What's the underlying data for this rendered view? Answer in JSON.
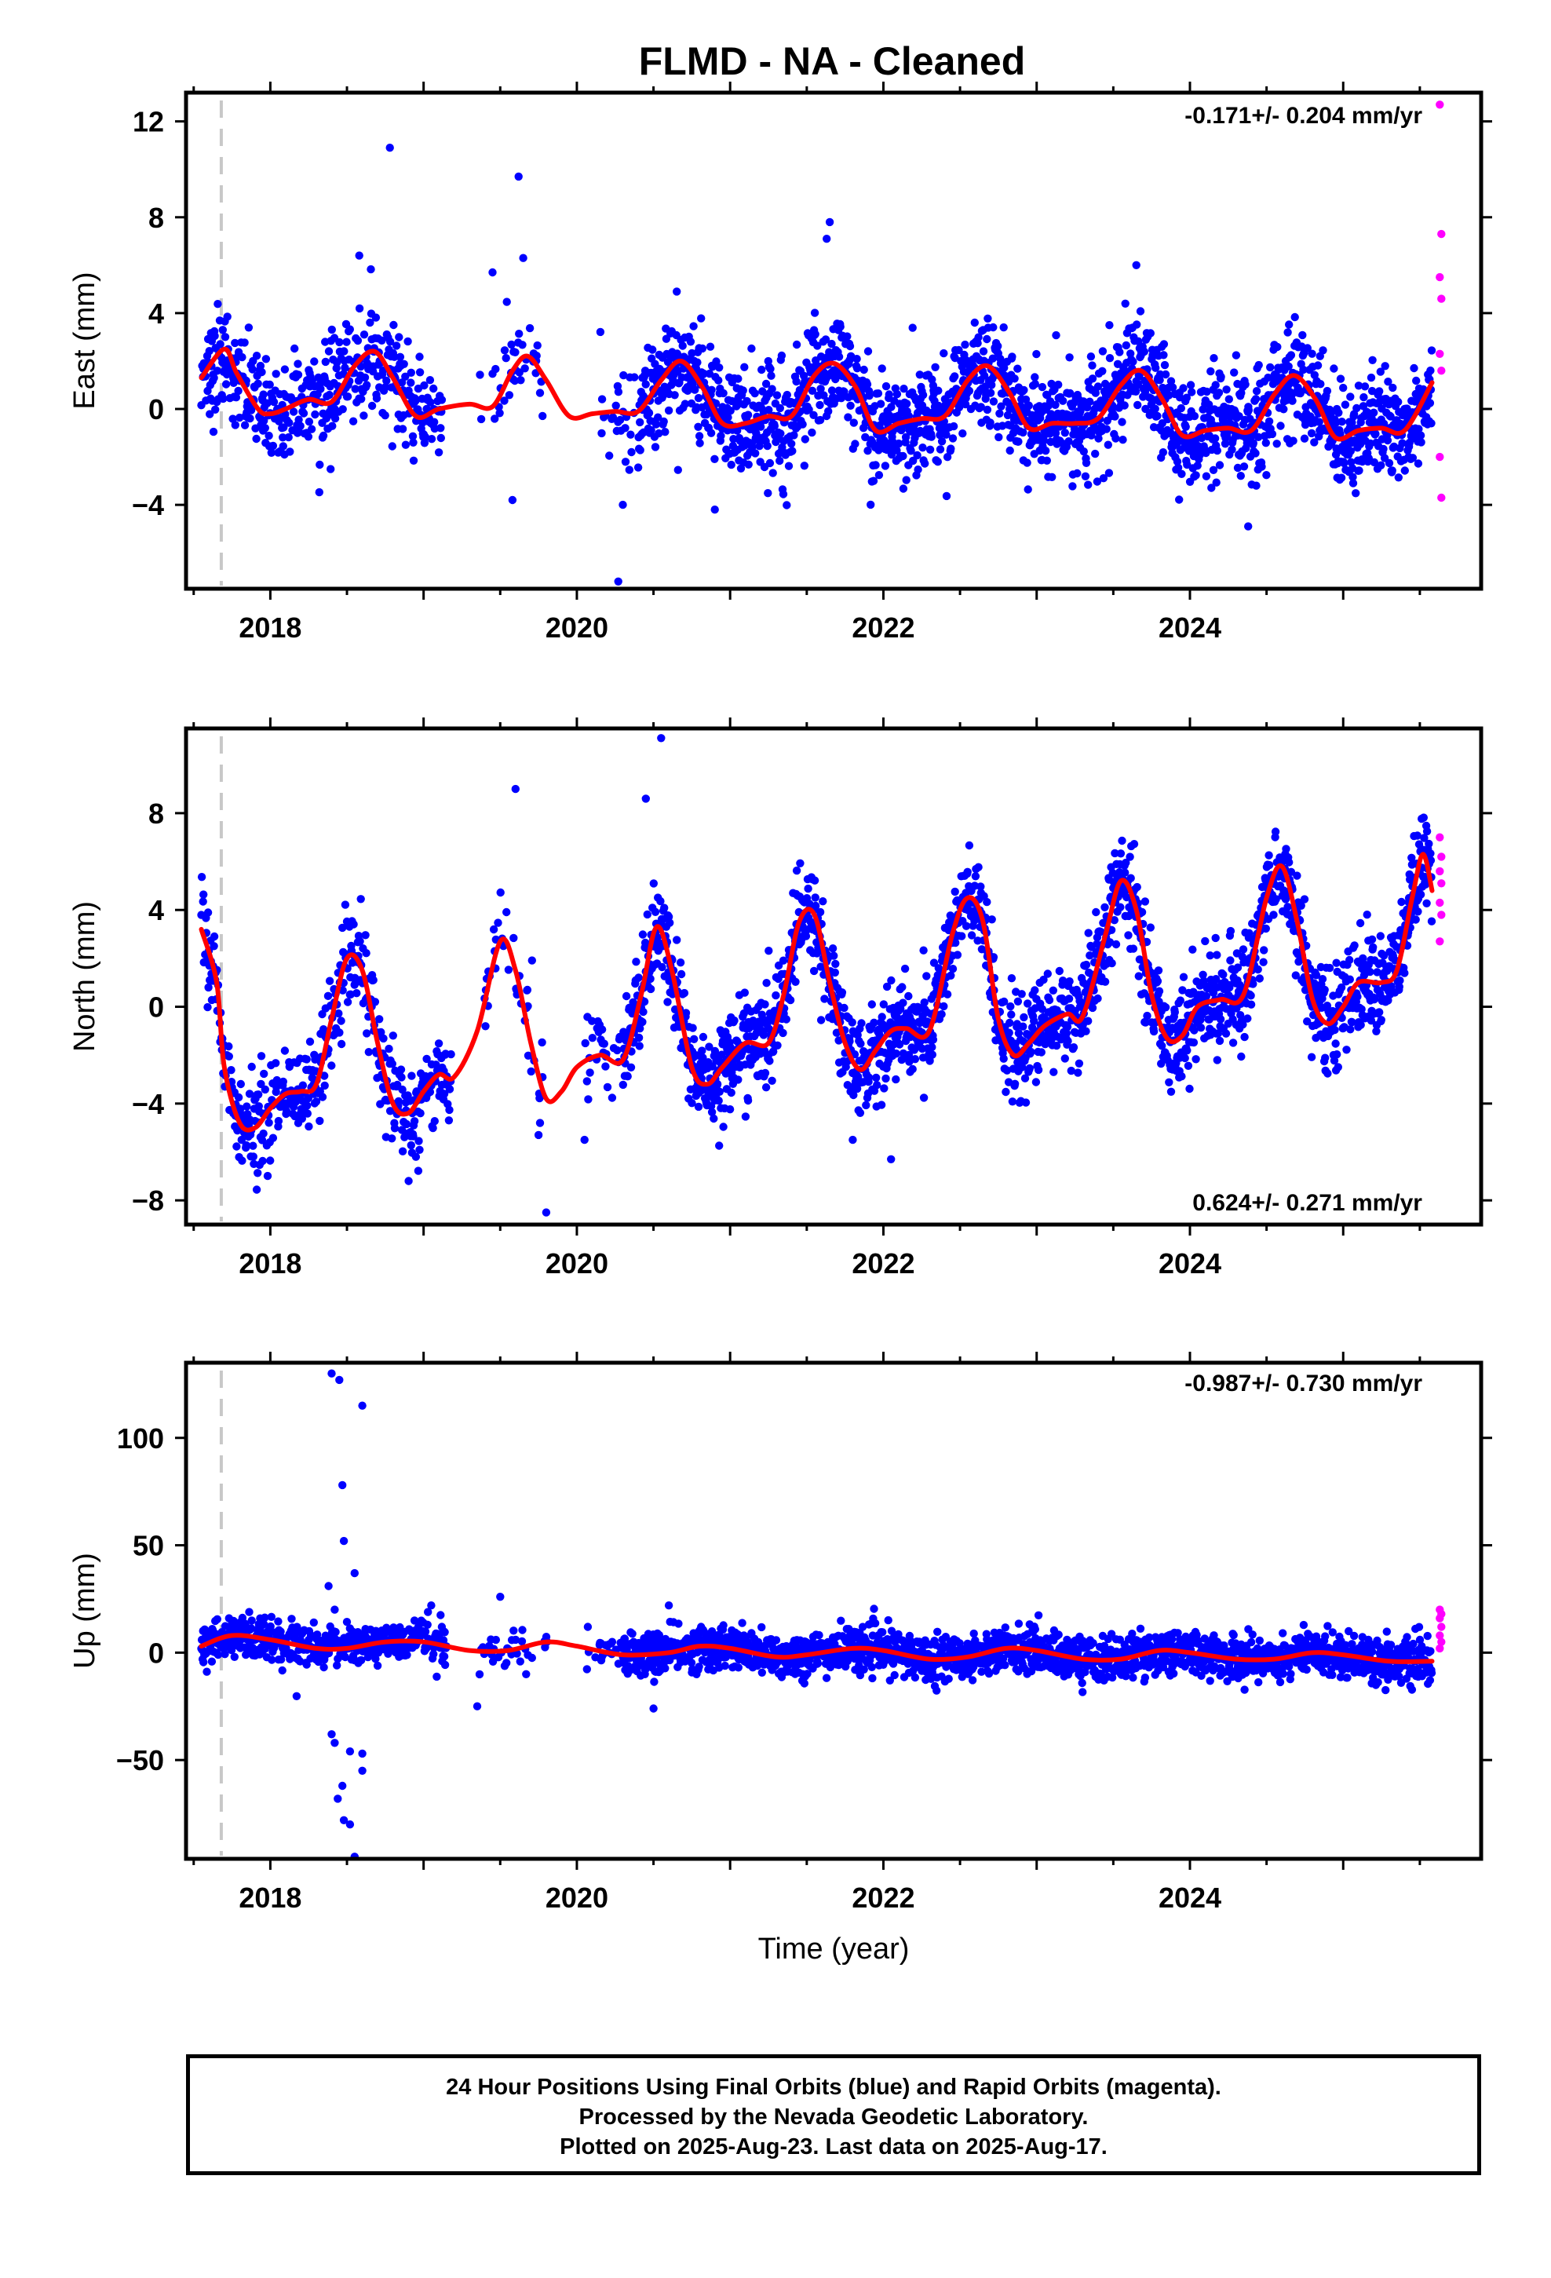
{
  "title": "FLMD  - NA - Cleaned",
  "footer": {
    "lines": [
      "24 Hour Positions Using Final Orbits (blue) and Rapid Orbits (magenta).",
      "Processed by the Nevada Geodetic Laboratory.",
      "Plotted on 2025-Aug-23. Last data on 2025-Aug-17."
    ]
  },
  "chart_data": [
    {
      "type": "scatter",
      "panel": "east",
      "ylabel": "East (mm)",
      "xlabel": "",
      "xlim": [
        2017.45,
        2025.9
      ],
      "ylim": [
        -7.5,
        13.2
      ],
      "xticks": [
        2018,
        2020,
        2022,
        2024
      ],
      "yticks": [
        -4,
        0,
        4,
        8,
        12
      ],
      "ytick_labels": [
        "−4",
        "0",
        "4",
        "8",
        "12"
      ],
      "rate_label": "-0.171+/- 0.204 mm/yr",
      "rate_position": "top-right",
      "reference_line_x": 2017.68,
      "colors": {
        "final": "#0000ff",
        "rapid": "#ff00ff",
        "model": "#ff0000",
        "refline": "#c8c8c8"
      },
      "noise_sd": 1.1,
      "rapid_y": [
        12.7,
        7.3,
        5.5,
        4.6,
        2.3,
        1.6,
        -2.0,
        -3.7
      ],
      "outliers": [
        [
          2018.78,
          10.9
        ],
        [
          2019.62,
          9.7
        ],
        [
          2019.65,
          6.3
        ],
        [
          2018.58,
          6.4
        ],
        [
          2021.65,
          7.8
        ],
        [
          2021.63,
          7.1
        ],
        [
          2020.27,
          -7.2
        ],
        [
          2020.3,
          -4.0
        ],
        [
          2019.58,
          -3.8
        ],
        [
          2024.38,
          -4.9
        ],
        [
          2020.9,
          -4.2
        ],
        [
          2023.65,
          6.0
        ],
        [
          2019.45,
          5.7
        ]
      ],
      "model_x": [
        2017.55,
        2017.7,
        2017.78,
        2017.92,
        2018.0,
        2018.1,
        2018.25,
        2018.4,
        2018.55,
        2018.68,
        2018.8,
        2018.95,
        2019.1,
        2019.3,
        2019.45,
        2019.58,
        2019.68,
        2019.8,
        2019.95,
        2020.1,
        2020.25,
        2020.4,
        2020.55,
        2020.68,
        2020.82,
        2020.95,
        2021.1,
        2021.25,
        2021.4,
        2021.55,
        2021.68,
        2021.82,
        2021.95,
        2022.1,
        2022.25,
        2022.4,
        2022.55,
        2022.68,
        2022.82,
        2022.95,
        2023.1,
        2023.25,
        2023.4,
        2023.55,
        2023.68,
        2023.82,
        2023.95,
        2024.1,
        2024.25,
        2024.4,
        2024.55,
        2024.68,
        2024.82,
        2024.95,
        2025.1,
        2025.25,
        2025.4,
        2025.58
      ],
      "model_y": [
        1.3,
        2.5,
        1.5,
        0.0,
        -0.2,
        0.0,
        0.4,
        0.3,
        1.8,
        2.4,
        1.3,
        -0.3,
        0.0,
        0.2,
        0.1,
        1.6,
        2.2,
        1.2,
        -0.3,
        -0.2,
        -0.1,
        -0.1,
        1.2,
        2.0,
        0.9,
        -0.6,
        -0.6,
        -0.3,
        -0.3,
        1.4,
        1.9,
        0.9,
        -0.9,
        -0.6,
        -0.4,
        -0.3,
        1.2,
        1.8,
        0.7,
        -0.8,
        -0.6,
        -0.6,
        -0.4,
        1.0,
        1.6,
        0.4,
        -1.1,
        -0.9,
        -0.8,
        -0.9,
        0.6,
        1.4,
        0.4,
        -1.2,
        -0.9,
        -0.8,
        -0.9,
        1.1
      ],
      "gaps": [
        [
          2019.12,
          2019.36
        ],
        [
          2019.78,
          2020.15
        ]
      ],
      "sparse": [
        [
          2019.36,
          2019.78,
          0.25
        ],
        [
          2020.15,
          2020.4,
          0.25
        ]
      ]
    },
    {
      "type": "scatter",
      "panel": "north",
      "ylabel": "North (mm)",
      "xlabel": "",
      "xlim": [
        2017.45,
        2025.9
      ],
      "ylim": [
        -9.0,
        11.5
      ],
      "xticks": [
        2018,
        2020,
        2022,
        2024
      ],
      "yticks": [
        -8,
        -4,
        0,
        4,
        8
      ],
      "ytick_labels": [
        "−8",
        "−4",
        "0",
        "4",
        "8"
      ],
      "rate_label": "0.624+/- 0.271 mm/yr",
      "rate_position": "bottom-right",
      "reference_line_x": 2017.68,
      "colors": {
        "final": "#0000ff",
        "rapid": "#ff00ff",
        "model": "#ff0000",
        "refline": "#c8c8c8"
      },
      "noise_sd": 1.0,
      "rapid_y": [
        7.0,
        6.2,
        5.6,
        5.1,
        4.3,
        3.8,
        2.7
      ],
      "outliers": [
        [
          2019.6,
          9.0
        ],
        [
          2020.55,
          11.1
        ],
        [
          2019.8,
          -8.5
        ],
        [
          2020.05,
          -5.5
        ],
        [
          2019.75,
          -5.3
        ],
        [
          2018.95,
          -6.2
        ],
        [
          2022.05,
          -6.3
        ],
        [
          2021.8,
          -5.5
        ],
        [
          2020.45,
          8.6
        ]
      ],
      "model_x": [
        2017.55,
        2017.65,
        2017.7,
        2017.8,
        2017.9,
        2018.0,
        2018.1,
        2018.2,
        2018.3,
        2018.4,
        2018.5,
        2018.6,
        2018.7,
        2018.8,
        2018.9,
        2019.0,
        2019.1,
        2019.2,
        2019.35,
        2019.5,
        2019.6,
        2019.7,
        2019.8,
        2019.9,
        2020.0,
        2020.15,
        2020.3,
        2020.42,
        2020.52,
        2020.62,
        2020.75,
        2020.85,
        2020.95,
        2021.1,
        2021.25,
        2021.35,
        2021.45,
        2021.55,
        2021.65,
        2021.75,
        2021.85,
        2021.95,
        2022.05,
        2022.15,
        2022.3,
        2022.45,
        2022.55,
        2022.65,
        2022.75,
        2022.85,
        2022.95,
        2023.05,
        2023.2,
        2023.3,
        2023.45,
        2023.55,
        2023.65,
        2023.75,
        2023.85,
        2023.95,
        2024.05,
        2024.2,
        2024.35,
        2024.5,
        2024.6,
        2024.7,
        2024.8,
        2024.9,
        2025.0,
        2025.1,
        2025.25,
        2025.35,
        2025.45,
        2025.52,
        2025.58
      ],
      "model_y": [
        3.2,
        1.0,
        -2.5,
        -4.8,
        -5.0,
        -4.2,
        -3.6,
        -3.5,
        -3.2,
        -0.5,
        2.0,
        1.5,
        -1.5,
        -4.0,
        -4.4,
        -3.5,
        -2.8,
        -2.9,
        -1.0,
        2.7,
        1.5,
        -1.5,
        -3.8,
        -3.5,
        -2.5,
        -2.0,
        -2.2,
        0.5,
        3.3,
        1.5,
        -2.5,
        -3.2,
        -2.5,
        -1.5,
        -1.5,
        0.5,
        3.5,
        3.8,
        1.0,
        -1.5,
        -2.6,
        -1.8,
        -1.0,
        -0.9,
        -1.0,
        3.0,
        4.5,
        3.5,
        -0.5,
        -2.0,
        -1.5,
        -0.8,
        -0.3,
        -0.4,
        3.0,
        5.2,
        4.0,
        0.5,
        -1.3,
        -1.2,
        0.0,
        0.3,
        0.5,
        4.5,
        5.8,
        3.5,
        0.3,
        -0.7,
        0.0,
        1.0,
        1.0,
        1.5,
        4.5,
        6.3,
        4.8
      ],
      "gaps": [
        [
          2019.18,
          2019.38
        ],
        [
          2019.78,
          2020.05
        ]
      ],
      "sparse": [
        [
          2019.38,
          2019.78,
          0.25
        ],
        [
          2020.05,
          2020.3,
          0.3
        ]
      ]
    },
    {
      "type": "scatter",
      "panel": "up",
      "ylabel": "Up (mm)",
      "xlabel": "Time (year)",
      "xlim": [
        2017.45,
        2025.9
      ],
      "ylim": [
        -96,
        135
      ],
      "xticks": [
        2018,
        2020,
        2022,
        2024
      ],
      "yticks": [
        -50,
        0,
        50,
        100
      ],
      "ytick_labels": [
        "−50",
        "0",
        "50",
        "100"
      ],
      "rate_label": "-0.987+/- 0.730 mm/yr",
      "rate_position": "top-right",
      "reference_line_x": 2017.68,
      "colors": {
        "final": "#0000ff",
        "rapid": "#ff00ff",
        "model": "#ff0000",
        "refline": "#c8c8c8"
      },
      "noise_sd": 5.0,
      "rapid_y": [
        20.0,
        18.0,
        16.0,
        12.0,
        8.0,
        5.0,
        2.0
      ],
      "outliers": [
        [
          2018.4,
          130
        ],
        [
          2018.45,
          127
        ],
        [
          2018.6,
          115
        ],
        [
          2018.47,
          78
        ],
        [
          2018.48,
          52
        ],
        [
          2018.55,
          37
        ],
        [
          2018.38,
          31
        ],
        [
          2018.42,
          20
        ],
        [
          2018.4,
          -38
        ],
        [
          2018.42,
          -42
        ],
        [
          2018.52,
          -46
        ],
        [
          2018.6,
          -47
        ],
        [
          2018.6,
          -55
        ],
        [
          2018.47,
          -62
        ],
        [
          2018.44,
          -68
        ],
        [
          2018.48,
          -78
        ],
        [
          2018.52,
          -80
        ],
        [
          2018.55,
          -95
        ],
        [
          2019.35,
          -25
        ],
        [
          2019.5,
          26
        ],
        [
          2020.5,
          -26
        ],
        [
          2019.05,
          22
        ],
        [
          2020.6,
          22
        ]
      ],
      "model_x": [
        2017.55,
        2017.75,
        2018.0,
        2018.3,
        2018.5,
        2018.75,
        2019.0,
        2019.3,
        2019.55,
        2019.8,
        2020.0,
        2020.3,
        2020.6,
        2020.8,
        2021.0,
        2021.3,
        2021.5,
        2021.8,
        2022.0,
        2022.3,
        2022.55,
        2022.8,
        2023.0,
        2023.3,
        2023.55,
        2023.8,
        2024.0,
        2024.3,
        2024.55,
        2024.8,
        2025.0,
        2025.3,
        2025.58
      ],
      "model_y": [
        3,
        8,
        6,
        2,
        2,
        5,
        5,
        1,
        1,
        5,
        3,
        -1,
        0,
        3,
        2,
        -2,
        -1,
        2,
        1,
        -3,
        -2,
        2,
        1,
        -3,
        -3,
        1,
        0,
        -3,
        -3,
        0,
        -1,
        -4,
        -4
      ],
      "gaps": [
        [
          2019.15,
          2019.33
        ],
        [
          2019.82,
          2020.05
        ]
      ],
      "sparse": [
        [
          2019.33,
          2019.82,
          0.2
        ],
        [
          2020.05,
          2020.3,
          0.25
        ]
      ]
    }
  ]
}
